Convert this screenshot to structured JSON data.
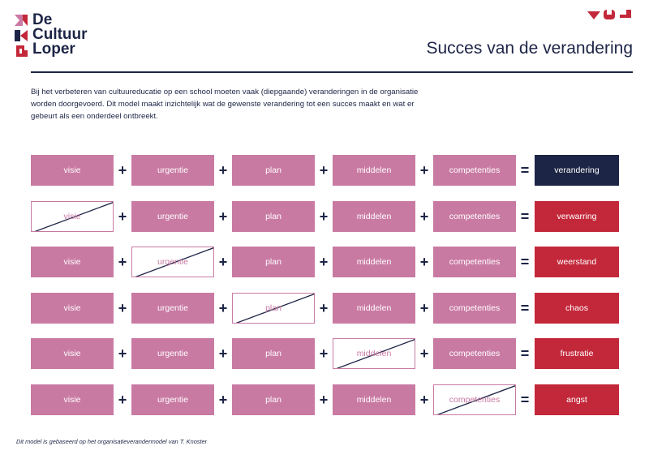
{
  "brand": {
    "line1": "De",
    "line2": "Cultuur",
    "line3": "Loper"
  },
  "page_title": "Succes van de verandering",
  "intro": "Bij het verbeteren van cultuureducatie op een school moeten vaak (diepgaande) veranderingen in de organisatie worden doorgevoerd. Dit model maakt inzichtelijk wat de gewenste verandering tot een succes maakt en wat er gebeurt als een onderdeel ontbreekt.",
  "factors": [
    "visie",
    "urgentie",
    "plan",
    "middelen",
    "competenties"
  ],
  "operators": {
    "plus": "+",
    "equals": "="
  },
  "rows": [
    {
      "missing": null,
      "result": "verandering",
      "result_color": "#1d2546"
    },
    {
      "missing": 0,
      "result": "verwarring",
      "result_color": "#c3283a"
    },
    {
      "missing": 1,
      "result": "weerstand",
      "result_color": "#c3283a"
    },
    {
      "missing": 2,
      "result": "chaos",
      "result_color": "#c3283a"
    },
    {
      "missing": 3,
      "result": "frustratie",
      "result_color": "#c3283a"
    },
    {
      "missing": 4,
      "result": "angst",
      "result_color": "#c3283a"
    }
  ],
  "colors": {
    "navy": "#1d2546",
    "pink": "#c97aa3",
    "red": "#c3283a"
  },
  "footnote": "Dit model is gebaseerd op het organisatieverandermodel van T. Knoster"
}
